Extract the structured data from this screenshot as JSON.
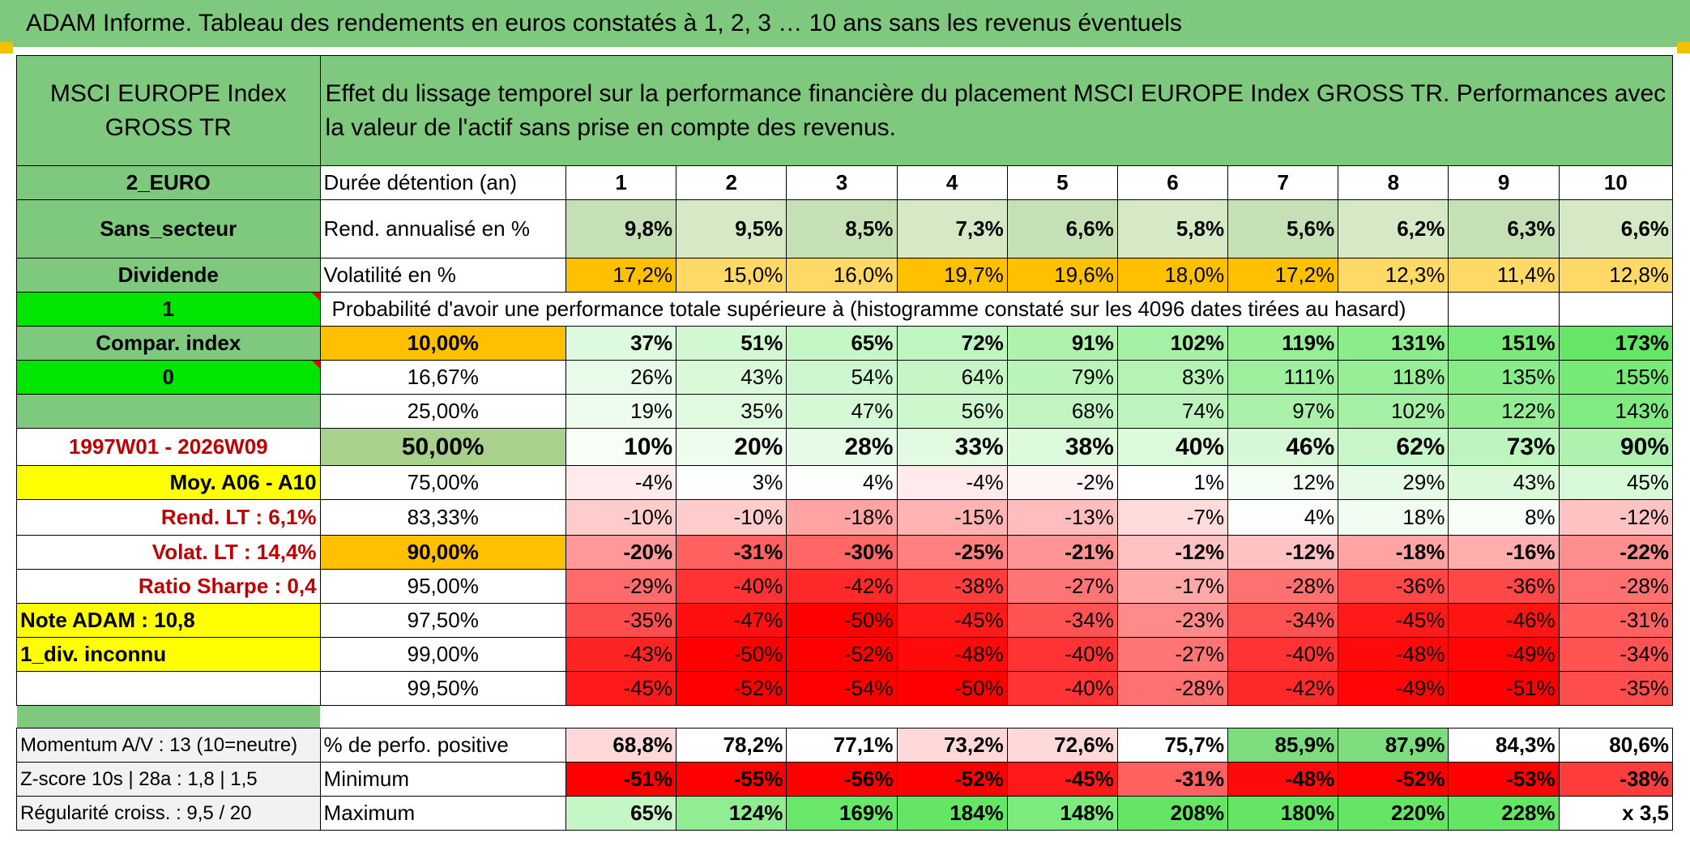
{
  "title": "ADAM Informe. Tableau des rendements en euros constatés à 1, 2, 3 … 10 ans sans les revenus éventuels",
  "header": {
    "index_name": "MSCI EUROPE Index GROSS TR",
    "description": "Effet du lissage temporel sur la performance financière du placement MSCI EUROPE Index GROSS TR. Performances avec la valeur de l'actif sans prise en compte des revenus."
  },
  "left": {
    "currency": "2_EURO",
    "sector": "Sans_secteur",
    "dividend": "Dividende",
    "one": "1",
    "compar": "Compar. index",
    "zero": "0",
    "period": "1997W01 - 2026W09",
    "moy": "Moy. A06 - A10",
    "rend_lt": "Rend. LT :   6,1%",
    "volat_lt": "Volat. LT :   14,4%",
    "sharpe": "Ratio Sharpe :   0,4",
    "note": "Note ADAM : 10,8",
    "div": "1_div. inconnu",
    "momentum": "Momentum A/V : 13 (10=neutre)",
    "zscore": "Z-score 10s | 28a : 1,8 | 1,5",
    "regularite": "Régularité croiss. : 9,5 / 20"
  },
  "labels": {
    "duree": "Durée détention (an)",
    "rend": "Rend. annualisé en %",
    "vol": "Volatilité en %",
    "proba": "Probabilité d'avoir une performance totale supérieure à (histogramme constaté sur les 4096 dates tirées au hasard)",
    "pos": "% de perfo. positive",
    "min": "Minimum",
    "max": "Maximum"
  },
  "years": [
    "1",
    "2",
    "3",
    "4",
    "5",
    "6",
    "7",
    "8",
    "9",
    "10"
  ],
  "rend": [
    "9,8%",
    "9,5%",
    "8,5%",
    "7,3%",
    "6,6%",
    "5,8%",
    "5,6%",
    "6,2%",
    "6,3%",
    "6,6%"
  ],
  "vol": [
    "17,2%",
    "15,0%",
    "16,0%",
    "19,7%",
    "19,6%",
    "18,0%",
    "17,2%",
    "12,3%",
    "11,4%",
    "12,8%"
  ],
  "prob_rows": [
    {
      "p": "10,00%",
      "v": [
        "37%",
        "51%",
        "65%",
        "72%",
        "91%",
        "102%",
        "119%",
        "131%",
        "151%",
        "173%"
      ]
    },
    {
      "p": "16,67%",
      "v": [
        "26%",
        "43%",
        "54%",
        "64%",
        "79%",
        "83%",
        "111%",
        "118%",
        "135%",
        "155%"
      ]
    },
    {
      "p": "25,00%",
      "v": [
        "19%",
        "35%",
        "47%",
        "56%",
        "68%",
        "74%",
        "97%",
        "102%",
        "122%",
        "143%"
      ]
    },
    {
      "p": "50,00%",
      "v": [
        "10%",
        "20%",
        "28%",
        "33%",
        "38%",
        "40%",
        "46%",
        "62%",
        "73%",
        "90%"
      ]
    },
    {
      "p": "75,00%",
      "v": [
        "-4%",
        "3%",
        "4%",
        "-4%",
        "-2%",
        "1%",
        "12%",
        "29%",
        "43%",
        "45%"
      ]
    },
    {
      "p": "83,33%",
      "v": [
        "-10%",
        "-10%",
        "-18%",
        "-15%",
        "-13%",
        "-7%",
        "4%",
        "18%",
        "8%",
        "-12%"
      ]
    },
    {
      "p": "90,00%",
      "v": [
        "-20%",
        "-31%",
        "-30%",
        "-25%",
        "-21%",
        "-12%",
        "-12%",
        "-18%",
        "-16%",
        "-22%"
      ]
    },
    {
      "p": "95,00%",
      "v": [
        "-29%",
        "-40%",
        "-42%",
        "-38%",
        "-27%",
        "-17%",
        "-28%",
        "-36%",
        "-36%",
        "-28%"
      ]
    },
    {
      "p": "97,50%",
      "v": [
        "-35%",
        "-47%",
        "-50%",
        "-45%",
        "-34%",
        "-23%",
        "-34%",
        "-45%",
        "-46%",
        "-31%"
      ]
    },
    {
      "p": "99,00%",
      "v": [
        "-43%",
        "-50%",
        "-52%",
        "-48%",
        "-40%",
        "-27%",
        "-40%",
        "-48%",
        "-49%",
        "-34%"
      ]
    },
    {
      "p": "99,50%",
      "v": [
        "-45%",
        "-52%",
        "-54%",
        "-50%",
        "-40%",
        "-28%",
        "-42%",
        "-49%",
        "-51%",
        "-35%"
      ]
    }
  ],
  "pos": [
    "68,8%",
    "78,2%",
    "77,1%",
    "73,2%",
    "72,6%",
    "75,7%",
    "85,9%",
    "87,9%",
    "84,3%",
    "80,6%"
  ],
  "min": [
    "-51%",
    "-55%",
    "-56%",
    "-52%",
    "-45%",
    "-31%",
    "-48%",
    "-52%",
    "-53%",
    "-38%"
  ],
  "max": [
    "65%",
    "124%",
    "169%",
    "184%",
    "148%",
    "208%",
    "180%",
    "220%",
    "228%",
    "x 3,5"
  ],
  "colors": {
    "dark_green": "#7fc97f",
    "light_green": "#c5e0b4",
    "lime": "#00e600",
    "yellow": "#ffff00",
    "orange": "#ffc000",
    "red": "#ff0000",
    "red_text": "#c00000"
  }
}
